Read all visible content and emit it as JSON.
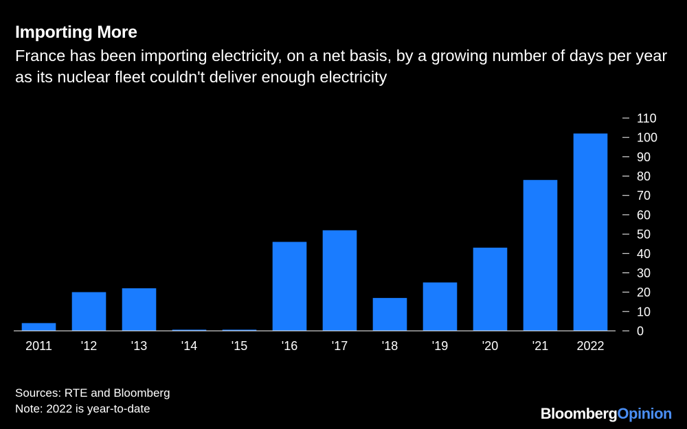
{
  "header": {
    "title": "Importing More",
    "subtitle": "France has been importing electricity, on a net basis, by a growing number of days per year as its nuclear fleet couldn't deliver enough electricity"
  },
  "footer": {
    "sources": "Sources: RTE and Bloomberg",
    "note": "Note: 2022 is year-to-date"
  },
  "brand": {
    "name": "Bloomberg",
    "suffix": "Opinion",
    "suffix_color": "#4a8ef5"
  },
  "chart_data": {
    "type": "bar",
    "title": "Importing More",
    "subtitle": "France has been importing electricity, on a net basis, by a growing number of days per year as its nuclear fleet couldn't deliver enough electricity",
    "categories": [
      "2011",
      "'12",
      "'13",
      "'14",
      "'15",
      "'16",
      "'17",
      "'18",
      "'19",
      "'20",
      "'21",
      "2022"
    ],
    "values": [
      4,
      20,
      22,
      0.6,
      0.6,
      46,
      52,
      17,
      25,
      43,
      78,
      102
    ],
    "ylim": [
      0,
      110
    ],
    "yticks": [
      0,
      10,
      20,
      30,
      40,
      50,
      60,
      70,
      80,
      90,
      100,
      110
    ],
    "yaxis_position": "right",
    "grid": false,
    "bar_color": "#1a7cff",
    "background": "#000000",
    "text_color": "#ffffff"
  }
}
